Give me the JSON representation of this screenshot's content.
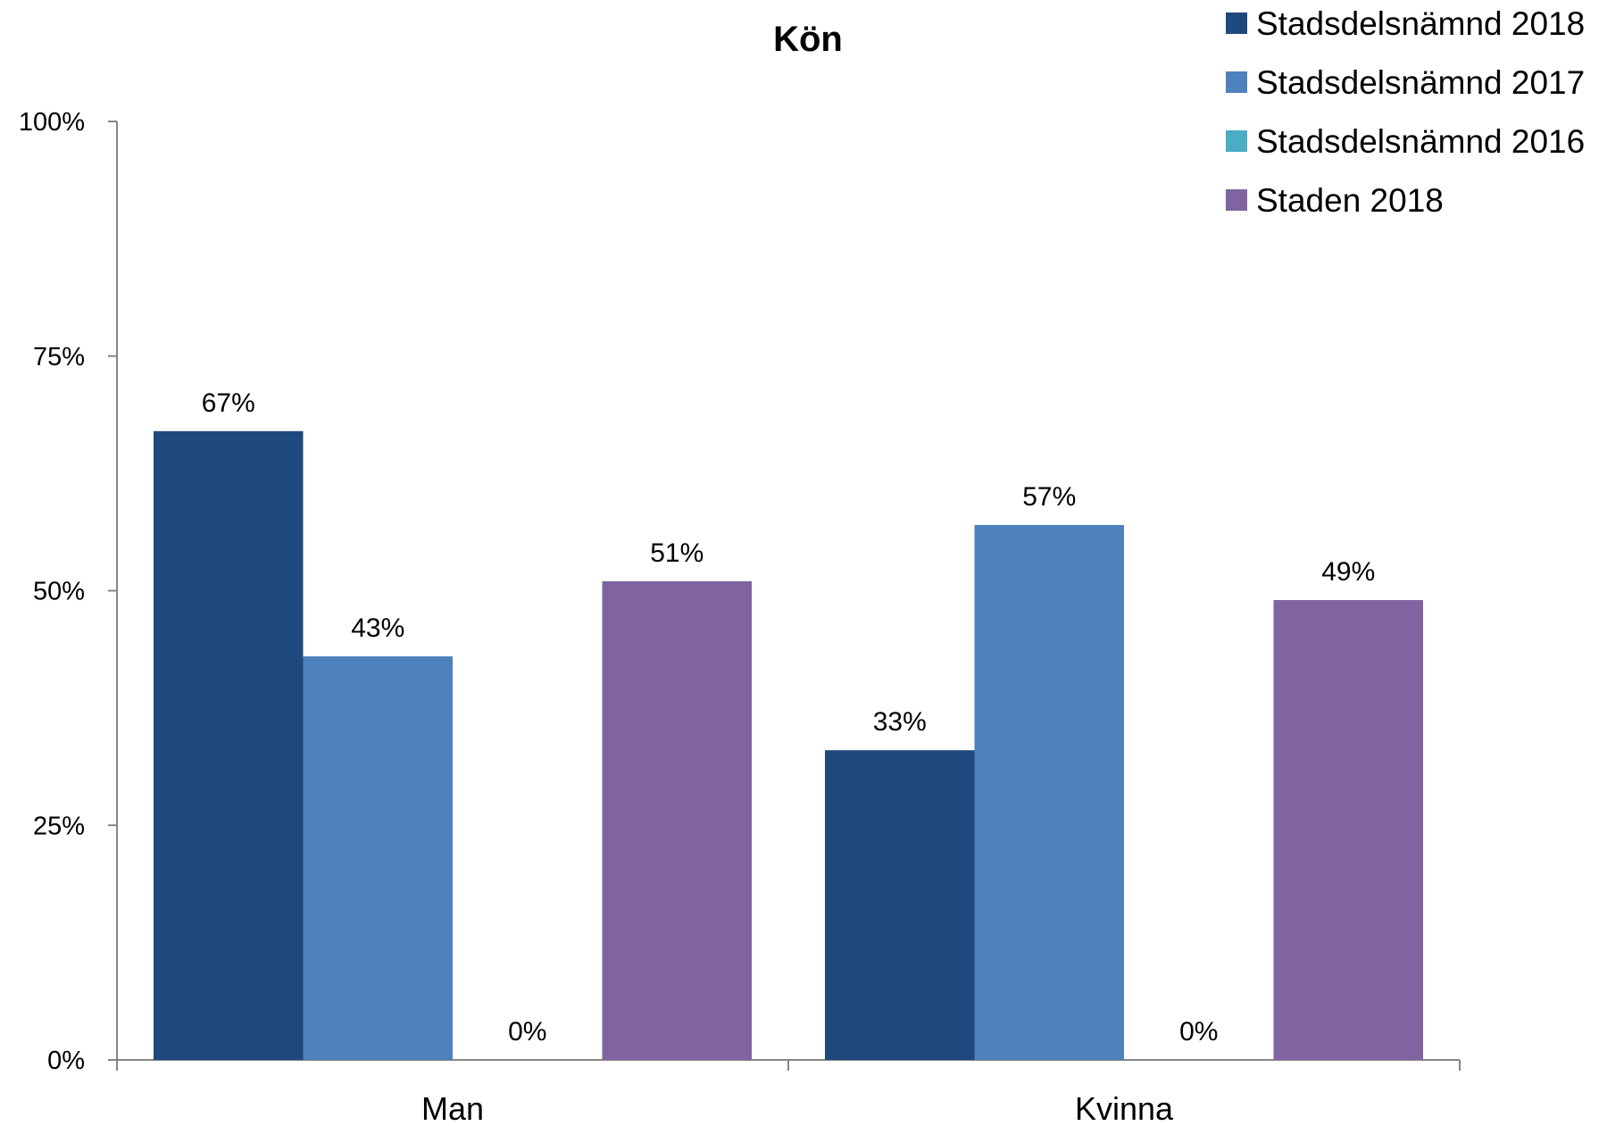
{
  "chart_data": {
    "type": "bar",
    "title": "Kön",
    "xlabel": "",
    "ylabel": "",
    "categories": [
      "Man",
      "Kvinna"
    ],
    "series": [
      {
        "name": "Stadsdelsnämnd 2018",
        "color": "#1f497d",
        "values": [
          67,
          33
        ],
        "labels": [
          "67%",
          "33%"
        ]
      },
      {
        "name": "Stadsdelsnämnd 2017",
        "color": "#4f81bd",
        "values": [
          43,
          57
        ],
        "labels": [
          "43%",
          "57%"
        ]
      },
      {
        "name": "Stadsdelsnämnd 2016",
        "color": "#4bacc6",
        "values": [
          0,
          0
        ],
        "labels": [
          "0%",
          "0%"
        ]
      },
      {
        "name": "Staden 2018",
        "color": "#8064a2",
        "values": [
          51,
          49
        ],
        "labels": [
          "51%",
          "49%"
        ]
      }
    ],
    "ylim": [
      0,
      100
    ],
    "yticks": [
      0,
      25,
      50,
      75,
      100
    ],
    "ytick_labels": [
      "0%",
      "25%",
      "50%",
      "75%",
      "100%"
    ],
    "grid": false,
    "legend_position": "top-right",
    "axis_color": "#868686"
  }
}
